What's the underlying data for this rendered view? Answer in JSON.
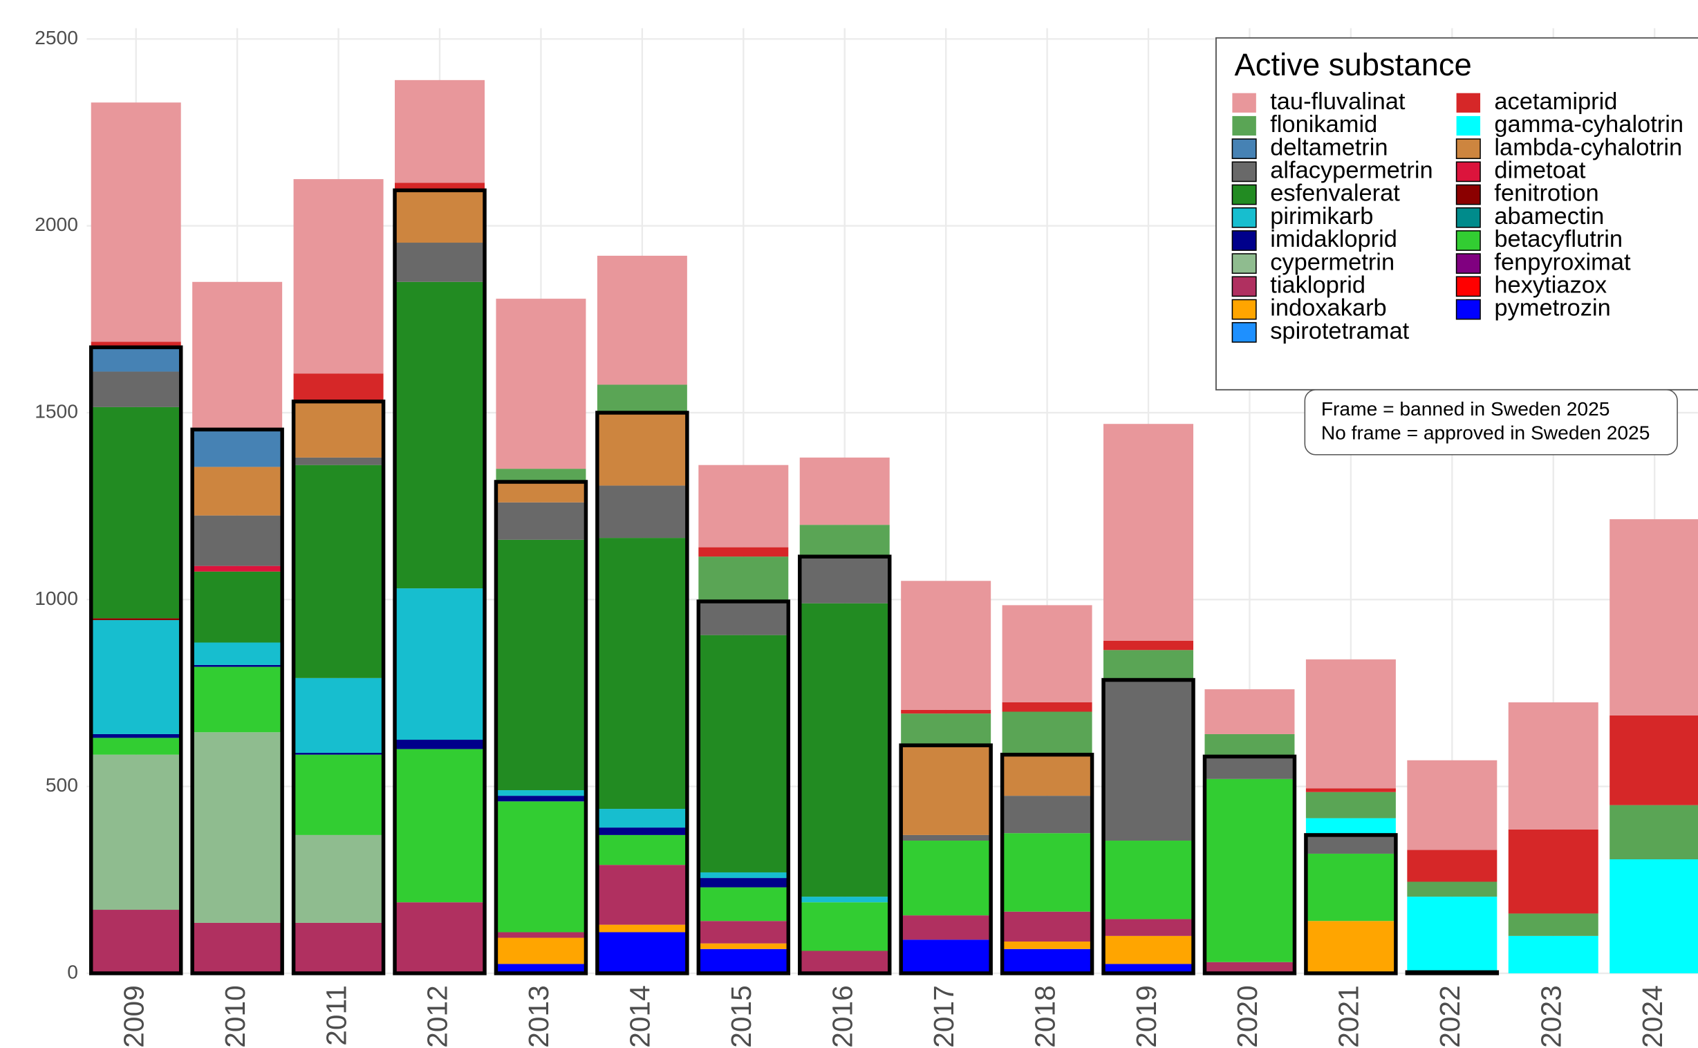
{
  "chart_data": {
    "type": "stacked_bar",
    "legend_title": "Active substance",
    "notes": [
      "Frame = banned in Sweden 2025",
      "No frame = approved in Sweden 2025"
    ],
    "categories": [
      "2009",
      "2010",
      "2011",
      "2012",
      "2013",
      "2014",
      "2015",
      "2016",
      "2017",
      "2018",
      "2019",
      "2020",
      "2021",
      "2022",
      "2023",
      "2024"
    ],
    "ylim": [
      0,
      2500
    ],
    "yticks": [
      0,
      500,
      1000,
      1500,
      2000,
      2500
    ],
    "grid": true,
    "legend": "top-right",
    "series": [
      {
        "name": "tau-fluvalinat",
        "color": "#e8979b",
        "banned": false,
        "values": [
          640,
          395,
          520,
          275,
          455,
          345,
          220,
          180,
          345,
          260,
          580,
          120,
          345,
          240,
          340,
          525
        ]
      },
      {
        "name": "flonikamid",
        "color": "#5aa555",
        "banned": false,
        "values": [
          0,
          0,
          0,
          0,
          35,
          75,
          120,
          85,
          85,
          115,
          80,
          60,
          70,
          40,
          60,
          145
        ]
      },
      {
        "name": "deltametrin",
        "color": "#4682b4",
        "banned": true,
        "values": [
          65,
          100,
          0,
          0,
          0,
          0,
          0,
          0,
          0,
          0,
          0,
          0,
          0,
          0,
          0,
          0
        ]
      },
      {
        "name": "alfacypermetrin",
        "color": "#696969",
        "banned": true,
        "values": [
          95,
          135,
          20,
          105,
          100,
          140,
          90,
          125,
          15,
          100,
          430,
          60,
          50,
          0,
          0,
          0
        ]
      },
      {
        "name": "esfenvalerat",
        "color": "#228b22",
        "banned": true,
        "values": [
          565,
          190,
          570,
          820,
          670,
          725,
          635,
          785,
          0,
          0,
          0,
          0,
          0,
          0,
          0,
          0
        ]
      },
      {
        "name": "pirimikarb",
        "color": "#17becf",
        "banned": true,
        "values": [
          305,
          60,
          200,
          405,
          15,
          50,
          15,
          15,
          0,
          0,
          0,
          0,
          0,
          0,
          0,
          0
        ]
      },
      {
        "name": "imidakloprid",
        "color": "#00008b",
        "banned": true,
        "values": [
          10,
          5,
          5,
          25,
          15,
          20,
          25,
          0,
          0,
          0,
          0,
          0,
          0,
          0,
          0,
          0
        ]
      },
      {
        "name": "cypermetrin",
        "color": "#8fbc8f",
        "banned": true,
        "values": [
          415,
          510,
          235,
          0,
          0,
          0,
          0,
          0,
          0,
          0,
          0,
          0,
          0,
          0,
          0,
          0
        ]
      },
      {
        "name": "tiakloprid",
        "color": "#b03060",
        "banned": true,
        "values": [
          170,
          135,
          135,
          190,
          15,
          160,
          60,
          60,
          65,
          80,
          45,
          30,
          0,
          0,
          0,
          0
        ]
      },
      {
        "name": "indoxakarb",
        "color": "#ffa500",
        "banned": true,
        "values": [
          0,
          0,
          0,
          0,
          70,
          20,
          15,
          0,
          0,
          20,
          75,
          0,
          140,
          0,
          0,
          0
        ]
      },
      {
        "name": "spirotetramat",
        "color": "#1e90ff",
        "banned": true,
        "values": [
          0,
          0,
          0,
          0,
          0,
          0,
          0,
          0,
          0,
          0,
          0,
          0,
          0,
          0,
          0,
          0
        ]
      },
      {
        "name": "acetamiprid",
        "color": "#d62728",
        "banned": false,
        "values": [
          15,
          0,
          75,
          20,
          0,
          0,
          25,
          0,
          10,
          25,
          25,
          0,
          10,
          85,
          225,
          240
        ]
      },
      {
        "name": "gamma-cyhalotrin",
        "color": "#00ffff",
        "banned": false,
        "values": [
          0,
          0,
          0,
          0,
          0,
          0,
          0,
          0,
          0,
          0,
          0,
          0,
          45,
          202,
          100,
          305
        ]
      },
      {
        "name": "lambda-cyhalotrin",
        "color": "#cd853f",
        "banned": true,
        "values": [
          0,
          130,
          150,
          140,
          55,
          195,
          0,
          0,
          240,
          110,
          0,
          0,
          0,
          0,
          0,
          0
        ]
      },
      {
        "name": "dimetoat",
        "color": "#dc143c",
        "banned": true,
        "values": [
          0,
          15,
          0,
          0,
          0,
          0,
          0,
          0,
          0,
          0,
          0,
          0,
          0,
          0,
          0,
          0
        ]
      },
      {
        "name": "fenitrotion",
        "color": "#8b0000",
        "banned": true,
        "values": [
          5,
          0,
          0,
          0,
          0,
          0,
          0,
          0,
          0,
          0,
          0,
          0,
          0,
          0,
          0,
          0
        ]
      },
      {
        "name": "abamectin",
        "color": "#008b8b",
        "banned": true,
        "values": [
          0,
          0,
          0,
          0,
          0,
          0,
          0,
          0,
          0,
          0,
          0,
          0,
          0,
          0,
          0,
          0
        ]
      },
      {
        "name": "betacyflutrin",
        "color": "#32cd32",
        "banned": true,
        "values": [
          45,
          175,
          215,
          410,
          350,
          80,
          90,
          130,
          200,
          210,
          210,
          490,
          180,
          3,
          0,
          0
        ]
      },
      {
        "name": "fenpyroximat",
        "color": "#800080",
        "banned": true,
        "values": [
          0,
          0,
          0,
          0,
          0,
          0,
          0,
          0,
          0,
          0,
          0,
          0,
          0,
          0,
          0,
          0
        ]
      },
      {
        "name": "hexytiazox",
        "color": "#ff0000",
        "banned": true,
        "values": [
          0,
          0,
          0,
          0,
          0,
          0,
          0,
          0,
          0,
          0,
          0,
          0,
          0,
          0,
          0,
          0
        ]
      },
      {
        "name": "pymetrozin",
        "color": "#0000ff",
        "banned": true,
        "values": [
          0,
          0,
          0,
          0,
          25,
          110,
          65,
          0,
          90,
          65,
          25,
          0,
          0,
          0,
          0,
          0
        ]
      }
    ]
  }
}
